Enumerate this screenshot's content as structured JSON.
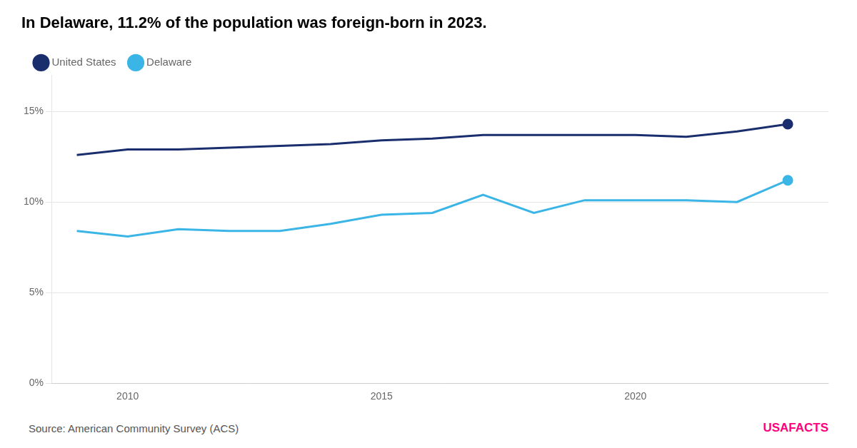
{
  "chart_data": {
    "type": "line",
    "title": "In Delaware, 11.2% of the population was foreign-born in 2023.",
    "x": [
      2009,
      2010,
      2011,
      2012,
      2013,
      2014,
      2015,
      2016,
      2017,
      2018,
      2019,
      2020,
      2021,
      2022,
      2023
    ],
    "series": [
      {
        "name": "United States",
        "color": "#1a2e6e",
        "values": [
          12.6,
          12.9,
          12.9,
          13.0,
          13.1,
          13.2,
          13.4,
          13.5,
          13.7,
          13.7,
          13.7,
          13.7,
          13.6,
          13.9,
          14.3
        ]
      },
      {
        "name": "Delaware",
        "color": "#3ab5e6",
        "values": [
          8.4,
          8.1,
          8.5,
          8.4,
          8.4,
          8.8,
          9.3,
          9.4,
          10.4,
          9.4,
          10.1,
          10.1,
          10.1,
          10.0,
          11.2
        ]
      }
    ],
    "xlim": [
      2008.5,
      2023.8
    ],
    "xticks": [
      2010,
      2015,
      2020
    ],
    "ylim": [
      0,
      17
    ],
    "yticks": [
      {
        "value": 0,
        "label": "0%"
      },
      {
        "value": 5,
        "label": "5%"
      },
      {
        "value": 10,
        "label": "10%"
      },
      {
        "value": 15,
        "label": "15%"
      }
    ],
    "grid": "y",
    "legend": "upper left",
    "annotations": [
      "Source: American Community Survey (ACS)",
      "USAFACTS"
    ]
  }
}
